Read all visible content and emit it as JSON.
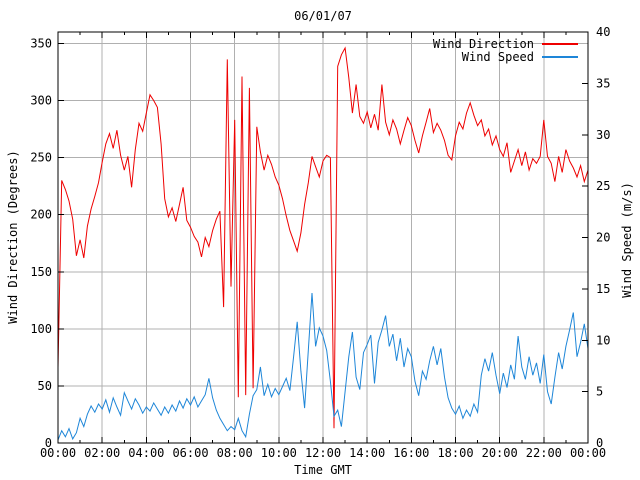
{
  "chart_data": {
    "type": "line",
    "title": "06/01/07",
    "xlabel": "Time GMT",
    "ylabel_left": "Wind Direction (Degrees)",
    "ylabel_right": "Wind Speed (m/s)",
    "grid": true,
    "legend_position": "top-right-inside",
    "x_range_hours": [
      0,
      24
    ],
    "x_major_hours": [
      0,
      2,
      4,
      6,
      8,
      10,
      12,
      14,
      16,
      18,
      20,
      22,
      24
    ],
    "x_tick_labels": [
      "00:00",
      "02:00",
      "04:00",
      "06:00",
      "08:00",
      "10:00",
      "12:00",
      "14:00",
      "16:00",
      "18:00",
      "20:00",
      "22:00",
      "00:00"
    ],
    "x_minor_step_hours": 1,
    "ylim_left": [
      0,
      360
    ],
    "yticks_left": [
      0,
      50,
      100,
      150,
      200,
      250,
      300,
      350
    ],
    "ylim_right": [
      0,
      40
    ],
    "yticks_right": [
      0,
      5,
      10,
      15,
      20,
      25,
      30,
      35,
      40
    ],
    "sample_interval_minutes": 10,
    "series": [
      {
        "name": "Wind Direction",
        "axis": "left",
        "units": "degrees",
        "color": "#ee0000",
        "values": [
          66,
          230,
          222,
          212,
          196,
          164,
          178,
          162,
          190,
          205,
          216,
          228,
          246,
          262,
          271,
          258,
          274,
          252,
          239,
          251,
          224,
          257,
          280,
          273,
          289,
          305,
          300,
          294,
          262,
          214,
          198,
          206,
          194,
          209,
          224,
          195,
          189,
          181,
          176,
          163,
          180,
          172,
          186,
          196,
          203,
          119,
          336,
          137,
          283,
          40,
          321,
          42,
          311,
          48,
          277,
          255,
          239,
          252,
          244,
          233,
          226,
          214,
          199,
          186,
          177,
          168,
          184,
          209,
          228,
          251,
          242,
          233,
          247,
          252,
          250,
          13,
          330,
          340,
          346,
          320,
          289,
          314,
          286,
          280,
          290,
          276,
          288,
          274,
          314,
          281,
          270,
          283,
          275,
          262,
          274,
          285,
          278,
          265,
          254,
          269,
          281,
          293,
          272,
          280,
          274,
          265,
          252,
          248,
          269,
          281,
          275,
          289,
          298,
          287,
          278,
          283,
          269,
          275,
          261,
          269,
          257,
          251,
          263,
          237,
          247,
          257,
          243,
          255,
          239,
          249,
          245,
          251,
          283,
          251,
          245,
          229,
          251,
          237,
          257,
          247,
          241,
          233,
          243,
          229,
          239
        ]
      },
      {
        "name": "Wind Speed",
        "axis": "right",
        "units": "m/s",
        "color": "#1e86d8",
        "values": [
          0.3,
          1.2,
          0.6,
          1.4,
          0.4,
          1.0,
          2.4,
          1.6,
          2.8,
          3.6,
          3.0,
          3.8,
          3.3,
          4.2,
          3.0,
          4.4,
          3.5,
          2.7,
          4.9,
          4.1,
          3.3,
          4.3,
          3.7,
          2.9,
          3.5,
          3.1,
          3.9,
          3.3,
          2.7,
          3.5,
          2.9,
          3.7,
          3.1,
          4.1,
          3.4,
          4.3,
          3.7,
          4.5,
          3.5,
          4.1,
          4.7,
          6.3,
          4.4,
          3.2,
          2.4,
          1.8,
          1.2,
          1.6,
          1.3,
          2.4,
          1.2,
          0.6,
          2.8,
          4.6,
          5.2,
          7.4,
          4.6,
          5.7,
          4.5,
          5.3,
          4.7,
          5.5,
          6.3,
          5.1,
          8.4,
          11.8,
          7.0,
          3.4,
          9.0,
          14.6,
          9.4,
          11.2,
          10.4,
          9.0,
          6.0,
          2.6,
          3.2,
          1.6,
          5.0,
          8.4,
          10.8,
          6.4,
          5.2,
          8.8,
          9.6,
          10.5,
          5.8,
          9.8,
          11.0,
          12.4,
          9.4,
          10.6,
          8.0,
          10.2,
          7.4,
          9.2,
          8.4,
          6.0,
          4.6,
          7.0,
          6.2,
          8.0,
          9.4,
          7.6,
          9.2,
          6.4,
          4.4,
          3.4,
          2.8,
          3.6,
          2.4,
          3.2,
          2.6,
          3.8,
          3.0,
          6.6,
          8.2,
          7.0,
          8.8,
          6.6,
          4.8,
          6.8,
          5.4,
          7.6,
          6.2,
          10.4,
          7.4,
          6.2,
          8.4,
          6.6,
          7.8,
          5.8,
          8.6,
          5.0,
          3.8,
          6.4,
          8.8,
          7.2,
          9.4,
          11.0,
          12.7,
          8.4,
          9.8,
          11.6,
          9.2
        ]
      }
    ]
  },
  "colors": {
    "background": "#ffffff",
    "axis": "#000000",
    "grid": "#b0b0b0",
    "text": "#000000",
    "wind_direction": "#ee0000",
    "wind_speed": "#1e86d8"
  }
}
